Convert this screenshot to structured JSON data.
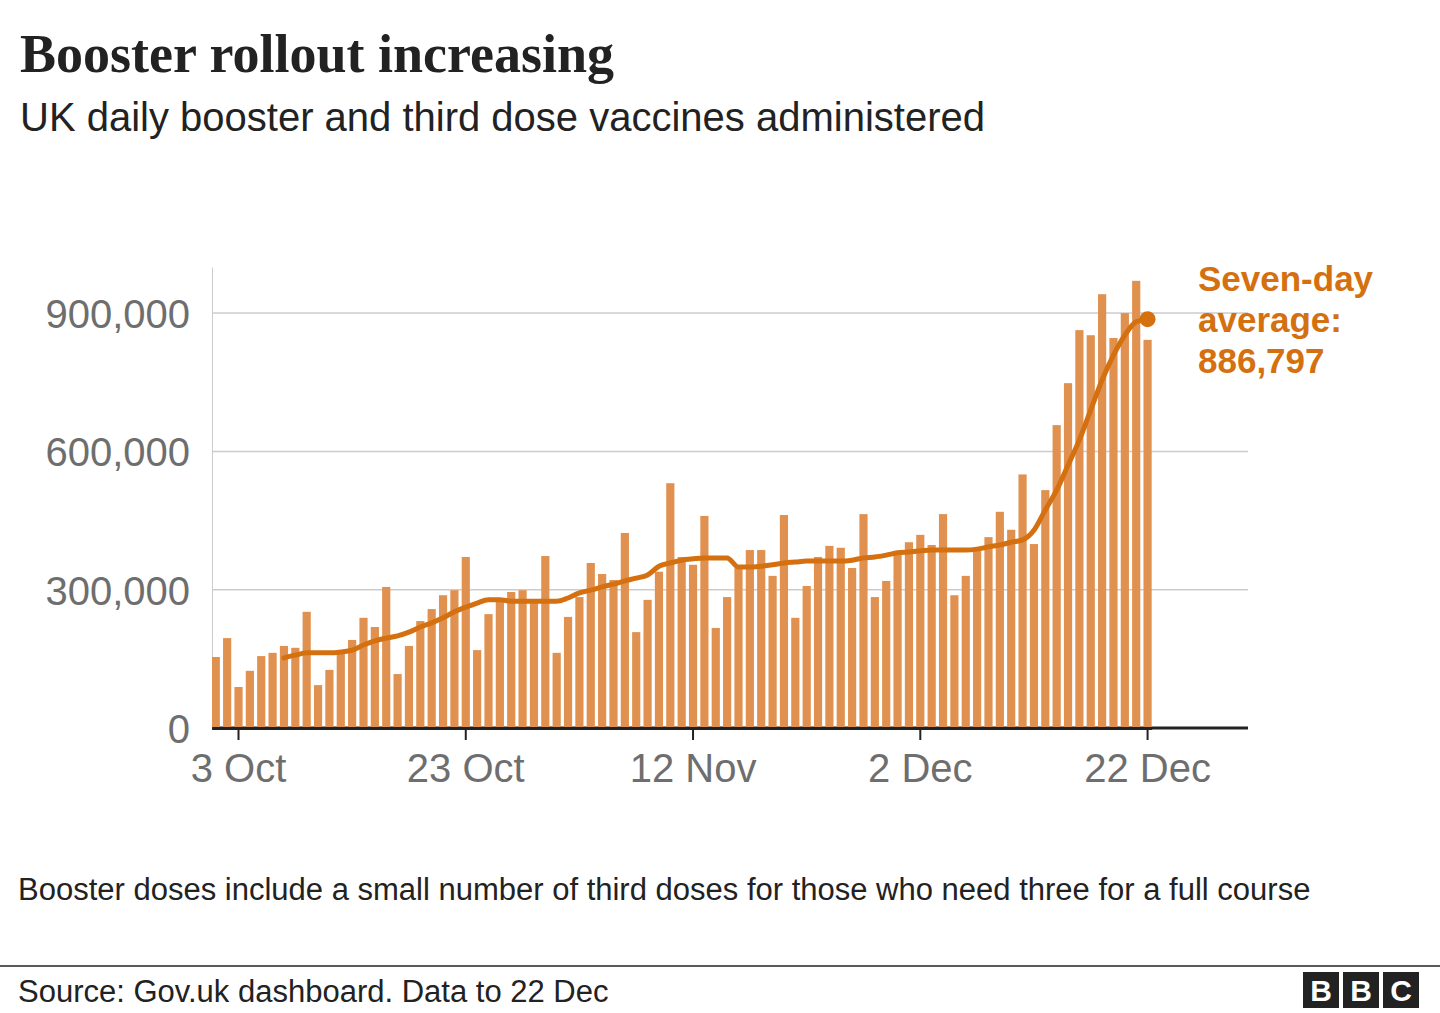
{
  "chart_data": {
    "type": "bar",
    "title": "Booster rollout increasing",
    "subtitle": "UK daily booster and third dose vaccines administered",
    "categories": [
      null,
      null,
      "3 Oct",
      null,
      null,
      null,
      null,
      null,
      null,
      null,
      null,
      null,
      null,
      null,
      null,
      null,
      null,
      null,
      null,
      null,
      null,
      null,
      "23 Oct",
      null,
      null,
      null,
      null,
      null,
      null,
      null,
      null,
      null,
      null,
      null,
      null,
      null,
      null,
      null,
      null,
      null,
      null,
      null,
      "12 Nov",
      null,
      null,
      null,
      null,
      null,
      null,
      null,
      null,
      null,
      null,
      null,
      null,
      null,
      null,
      null,
      null,
      null,
      null,
      null,
      "2 Dec",
      null,
      null,
      null,
      null,
      null,
      null,
      null,
      null,
      null,
      null,
      null,
      null,
      null,
      null,
      null,
      null,
      null,
      null,
      null,
      "22 Dec"
    ],
    "series": [
      {
        "type": "bar",
        "color": "#e0914f",
        "values": [
          154000,
          195000,
          89000,
          124000,
          156000,
          163000,
          178000,
          174000,
          252000,
          93000,
          126000,
          165000,
          191000,
          239000,
          219000,
          306000,
          117000,
          178000,
          232000,
          258000,
          288000,
          299000,
          371000,
          169000,
          247000,
          282000,
          295000,
          299000,
          271000,
          373000,
          163000,
          241000,
          284000,
          358000,
          334000,
          321000,
          423000,
          208000,
          278000,
          339000,
          531000,
          371000,
          354000,
          460000,
          217000,
          284000,
          347000,
          386000,
          386000,
          330000,
          462000,
          239000,
          308000,
          371000,
          395000,
          391000,
          347000,
          464000,
          284000,
          319000,
          384000,
          403000,
          419000,
          397000,
          464000,
          288000,
          330000,
          384000,
          414000,
          469000,
          430000,
          550000,
          399000,
          516000,
          657000,
          748000,
          863000,
          852000,
          941000,
          846000,
          900000,
          970000,
          842000
        ]
      },
      {
        "type": "line",
        "color": "#d4700f",
        "values": [
          null,
          null,
          null,
          null,
          null,
          null,
          152000,
          158000,
          163000,
          163000,
          163000,
          165000,
          169000,
          180000,
          189000,
          195000,
          200000,
          208000,
          219000,
          228000,
          239000,
          252000,
          262000,
          271000,
          278000,
          278000,
          275000,
          275000,
          275000,
          275000,
          275000,
          282000,
          293000,
          299000,
          306000,
          312000,
          319000,
          325000,
          332000,
          351000,
          358000,
          364000,
          367000,
          369000,
          369000,
          369000,
          349000,
          349000,
          351000,
          354000,
          358000,
          360000,
          362000,
          362000,
          362000,
          362000,
          364000,
          369000,
          371000,
          375000,
          380000,
          382000,
          384000,
          386000,
          386000,
          386000,
          386000,
          388000,
          393000,
          397000,
          403000,
          408000,
          429000,
          473000,
          516000,
          570000,
          625000,
          690000,
          755000,
          809000,
          852000,
          881000,
          886797
        ]
      }
    ],
    "ylim": [
      0,
      1000000
    ],
    "yticks": [
      0,
      {
        "value": 300000,
        "label": "300,000"
      },
      {
        "value": 600000,
        "label": "600,000"
      },
      {
        "value": 900000,
        "label": "900,000"
      }
    ],
    "grid": true,
    "annotations": [
      {
        "text": "Seven-day average:",
        "label": "886,797",
        "value": 886797
      }
    ],
    "note": "Booster doses include a small number of third doses for those who need three for a full course",
    "source": "Source: Gov.uk dashboard. Data to 22 Dec",
    "logo": "BBC"
  }
}
